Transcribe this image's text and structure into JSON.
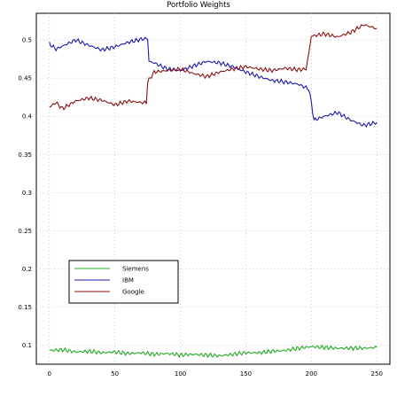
{
  "chart_data": {
    "type": "line",
    "title": "Portfolio Weights",
    "xlabel": "",
    "ylabel": "",
    "xlim": [
      -10,
      260
    ],
    "ylim": [
      0.075,
      0.535
    ],
    "x_ticks": [
      0,
      50,
      100,
      150,
      200,
      250
    ],
    "y_ticks": [
      0.1,
      0.15,
      0.2,
      0.25,
      0.3,
      0.35,
      0.4,
      0.45,
      0.5
    ],
    "y_tick_labels": [
      "0.1",
      "0.15",
      "0.2",
      "0.25",
      "0.3",
      "0.35",
      "0.4",
      "0.45",
      "0.5"
    ],
    "grid": true,
    "legend_position": "lower-left",
    "series": [
      {
        "name": "Siemens",
        "color": "#22aa22",
        "points": [
          [
            0,
            0.093
          ],
          [
            10,
            0.094
          ],
          [
            20,
            0.091
          ],
          [
            30,
            0.092
          ],
          [
            40,
            0.09
          ],
          [
            50,
            0.091
          ],
          [
            60,
            0.089
          ],
          [
            70,
            0.09
          ],
          [
            80,
            0.088
          ],
          [
            90,
            0.089
          ],
          [
            100,
            0.087
          ],
          [
            110,
            0.088
          ],
          [
            120,
            0.087
          ],
          [
            130,
            0.086
          ],
          [
            140,
            0.088
          ],
          [
            150,
            0.09
          ],
          [
            160,
            0.09
          ],
          [
            170,
            0.092
          ],
          [
            180,
            0.093
          ],
          [
            190,
            0.096
          ],
          [
            200,
            0.098
          ],
          [
            210,
            0.097
          ],
          [
            220,
            0.096
          ],
          [
            230,
            0.096
          ],
          [
            240,
            0.096
          ],
          [
            250,
            0.097
          ]
        ]
      },
      {
        "name": "IBM",
        "color": "#1a1aaa",
        "points": [
          [
            0,
            0.495
          ],
          [
            5,
            0.488
          ],
          [
            10,
            0.492
          ],
          [
            20,
            0.5
          ],
          [
            30,
            0.493
          ],
          [
            40,
            0.487
          ],
          [
            50,
            0.491
          ],
          [
            60,
            0.497
          ],
          [
            70,
            0.501
          ],
          [
            75,
            0.502
          ],
          [
            76,
            0.472
          ],
          [
            80,
            0.47
          ],
          [
            90,
            0.462
          ],
          [
            100,
            0.46
          ],
          [
            110,
            0.466
          ],
          [
            120,
            0.472
          ],
          [
            130,
            0.47
          ],
          [
            140,
            0.465
          ],
          [
            150,
            0.458
          ],
          [
            160,
            0.452
          ],
          [
            170,
            0.447
          ],
          [
            180,
            0.445
          ],
          [
            190,
            0.442
          ],
          [
            198,
            0.436
          ],
          [
            200,
            0.418
          ],
          [
            202,
            0.395
          ],
          [
            210,
            0.4
          ],
          [
            220,
            0.405
          ],
          [
            230,
            0.395
          ],
          [
            240,
            0.388
          ],
          [
            250,
            0.392
          ]
        ]
      },
      {
        "name": "Google",
        "color": "#8b1010",
        "points": [
          [
            0,
            0.412
          ],
          [
            5,
            0.418
          ],
          [
            10,
            0.41
          ],
          [
            20,
            0.42
          ],
          [
            30,
            0.424
          ],
          [
            40,
            0.421
          ],
          [
            50,
            0.415
          ],
          [
            60,
            0.42
          ],
          [
            70,
            0.418
          ],
          [
            74,
            0.418
          ],
          [
            75,
            0.445
          ],
          [
            80,
            0.458
          ],
          [
            90,
            0.46
          ],
          [
            100,
            0.462
          ],
          [
            110,
            0.456
          ],
          [
            120,
            0.452
          ],
          [
            130,
            0.458
          ],
          [
            140,
            0.462
          ],
          [
            150,
            0.465
          ],
          [
            160,
            0.462
          ],
          [
            170,
            0.46
          ],
          [
            180,
            0.463
          ],
          [
            190,
            0.461
          ],
          [
            196,
            0.462
          ],
          [
            198,
            0.482
          ],
          [
            200,
            0.505
          ],
          [
            210,
            0.508
          ],
          [
            220,
            0.504
          ],
          [
            230,
            0.51
          ],
          [
            240,
            0.52
          ],
          [
            250,
            0.515
          ]
        ]
      }
    ]
  }
}
